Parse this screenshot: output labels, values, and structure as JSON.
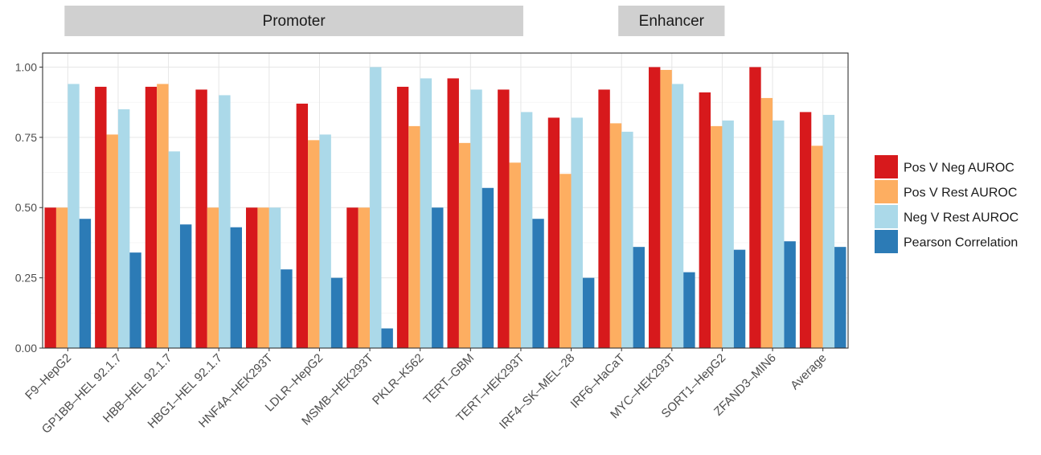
{
  "chart_data": {
    "type": "bar",
    "facet_strips": [
      {
        "label": "Promoter",
        "first_category": "F9–HepG2",
        "last_category": "TERT–HEK293T"
      },
      {
        "label": "Enhancer",
        "first_category": "IRF6–HaCaT",
        "last_category": "SORT1–HepG2"
      }
    ],
    "categories": [
      "F9–HepG2",
      "GP1BB–HEL 92.1.7",
      "HBB–HEL 92.1.7",
      "HBG1–HEL 92.1.7",
      "HNF4A–HEK293T",
      "LDLR–HepG2",
      "MSMB–HEK293T",
      "PKLR–K562",
      "TERT–GBM",
      "TERT–HEK293T",
      "IRF4–SK–MEL–28",
      "IRF6–HaCaT",
      "MYC–HEK293T",
      "SORT1–HepG2",
      "ZFAND3–MIN6",
      "Average"
    ],
    "series": [
      {
        "name": "Pos V Neg AUROC",
        "color": "#d7191c",
        "values": [
          0.5,
          0.93,
          0.93,
          0.92,
          0.5,
          0.87,
          0.5,
          0.93,
          0.96,
          0.92,
          0.82,
          0.92,
          1.0,
          0.91,
          1.0,
          0.84
        ]
      },
      {
        "name": "Pos V Rest AUROC",
        "color": "#fdae61",
        "values": [
          0.5,
          0.76,
          0.94,
          0.5,
          0.5,
          0.74,
          0.5,
          0.79,
          0.73,
          0.66,
          0.62,
          0.8,
          0.99,
          0.79,
          0.89,
          0.72
        ]
      },
      {
        "name": "Neg V Rest AUROC",
        "color": "#abd9e9",
        "values": [
          0.94,
          0.85,
          0.7,
          0.9,
          0.5,
          0.76,
          1.0,
          0.96,
          0.92,
          0.84,
          0.82,
          0.77,
          0.94,
          0.81,
          0.81,
          0.83
        ]
      },
      {
        "name": "Pearson Correlation",
        "color": "#2c7bb6",
        "values": [
          0.46,
          0.34,
          0.44,
          0.43,
          0.28,
          0.25,
          0.07,
          0.5,
          0.57,
          0.46,
          0.25,
          0.36,
          0.27,
          0.35,
          0.38,
          0.36
        ]
      }
    ],
    "y_ticks": [
      "0.00",
      "0.25",
      "0.50",
      "0.75",
      "1.00"
    ],
    "ylim": [
      0,
      1.05
    ],
    "grid": true,
    "legend_position": "right"
  }
}
